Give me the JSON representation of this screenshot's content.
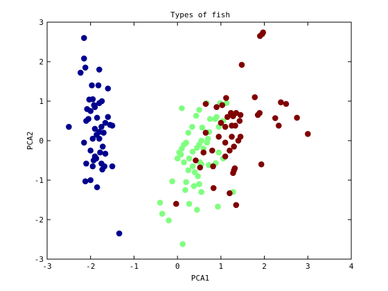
{
  "chart_data": {
    "type": "scatter",
    "title": "Types of fish",
    "xlabel": "PCA1",
    "ylabel": "PCA2",
    "xlim": [
      -3,
      4
    ],
    "ylim": [
      -3,
      3
    ],
    "xticks": [
      "-3",
      "-2",
      "-1",
      "0",
      "1",
      "2",
      "3",
      "4"
    ],
    "yticks": [
      "-3",
      "-2",
      "-1",
      "0",
      "1",
      "2",
      "3"
    ],
    "grid": false,
    "legend": "none",
    "series": [
      {
        "color": "#00008f",
        "points": [
          [
            -2.5,
            0.35
          ],
          [
            -2.15,
            2.6
          ],
          [
            -2.15,
            2.08
          ],
          [
            -2.23,
            1.72
          ],
          [
            -2.12,
            1.85
          ],
          [
            -1.8,
            1.8
          ],
          [
            -1.97,
            1.4
          ],
          [
            -1.82,
            1.4
          ],
          [
            -1.6,
            1.32
          ],
          [
            -2.03,
            1.04
          ],
          [
            -1.95,
            1.05
          ],
          [
            -1.8,
            0.95
          ],
          [
            -1.92,
            0.9
          ],
          [
            -1.9,
            0.85
          ],
          [
            -1.74,
            1.0
          ],
          [
            -2.08,
            0.8
          ],
          [
            -2.0,
            0.75
          ],
          [
            -1.6,
            0.6
          ],
          [
            -1.85,
            0.58
          ],
          [
            -2.05,
            0.55
          ],
          [
            -2.1,
            0.5
          ],
          [
            -1.66,
            0.45
          ],
          [
            -1.55,
            0.4
          ],
          [
            -1.5,
            0.38
          ],
          [
            -1.75,
            0.35
          ],
          [
            -1.9,
            0.3
          ],
          [
            -1.8,
            0.22
          ],
          [
            -1.86,
            0.15
          ],
          [
            -1.7,
            0.2
          ],
          [
            -2.15,
            -0.05
          ],
          [
            -1.95,
            0.05
          ],
          [
            -1.8,
            0.05
          ],
          [
            -1.72,
            -0.15
          ],
          [
            -2.0,
            -0.25
          ],
          [
            -1.9,
            -0.4
          ],
          [
            -1.93,
            -0.5
          ],
          [
            -1.87,
            -0.45
          ],
          [
            -1.78,
            -0.3
          ],
          [
            -1.66,
            -0.33
          ],
          [
            -2.1,
            -0.58
          ],
          [
            -1.95,
            -0.65
          ],
          [
            -1.75,
            -0.58
          ],
          [
            -1.68,
            -0.65
          ],
          [
            -1.5,
            -0.65
          ],
          [
            -1.73,
            -0.73
          ],
          [
            -2.0,
            -1.0
          ],
          [
            -2.12,
            -1.03
          ],
          [
            -1.85,
            -1.18
          ],
          [
            -1.34,
            -2.35
          ]
        ]
      },
      {
        "color": "#80ff80",
        "points": [
          [
            0.1,
            0.82
          ],
          [
            0.5,
            0.78
          ],
          [
            0.67,
            0.95
          ],
          [
            0.98,
            0.95
          ],
          [
            1.13,
            0.95
          ],
          [
            0.43,
            0.63
          ],
          [
            0.75,
            0.55
          ],
          [
            0.87,
            0.55
          ],
          [
            0.9,
            0.6
          ],
          [
            1.05,
            0.5
          ],
          [
            0.95,
            0.35
          ],
          [
            0.34,
            0.35
          ],
          [
            0.25,
            0.2
          ],
          [
            0.57,
            0.33
          ],
          [
            0.73,
            0.22
          ],
          [
            0.7,
            0.05
          ],
          [
            0.55,
            0.0
          ],
          [
            0.68,
            -0.05
          ],
          [
            0.5,
            -0.1
          ],
          [
            0.6,
            -0.2
          ],
          [
            0.35,
            -0.28
          ],
          [
            0.45,
            -0.18
          ],
          [
            0.1,
            -0.2
          ],
          [
            0.04,
            -0.3
          ],
          [
            0.08,
            -0.35
          ],
          [
            0.2,
            -0.05
          ],
          [
            0.15,
            -0.1
          ],
          [
            0.0,
            -0.45
          ],
          [
            0.15,
            -0.55
          ],
          [
            0.27,
            -0.45
          ],
          [
            0.52,
            -0.55
          ],
          [
            0.35,
            -0.65
          ],
          [
            0.55,
            -0.6
          ],
          [
            0.72,
            -0.62
          ],
          [
            0.88,
            -0.57
          ],
          [
            1.05,
            -0.45
          ],
          [
            0.95,
            -0.3
          ],
          [
            0.25,
            -0.75
          ],
          [
            0.4,
            -0.8
          ],
          [
            0.47,
            -0.9
          ],
          [
            -0.12,
            -1.03
          ],
          [
            0.2,
            -1.05
          ],
          [
            0.38,
            -1.15
          ],
          [
            0.5,
            -1.1
          ],
          [
            0.18,
            -1.25
          ],
          [
            0.55,
            -1.3
          ],
          [
            1.28,
            -1.3
          ],
          [
            0.27,
            -1.6
          ],
          [
            0.45,
            -1.75
          ],
          [
            0.93,
            -1.67
          ],
          [
            -0.4,
            -1.57
          ],
          [
            -0.35,
            -1.85
          ],
          [
            -0.2,
            -2.02
          ],
          [
            0.12,
            -2.62
          ]
        ]
      },
      {
        "color": "#800000",
        "points": [
          [
            1.95,
            2.7
          ],
          [
            1.97,
            2.74
          ],
          [
            1.9,
            2.65
          ],
          [
            1.48,
            1.92
          ],
          [
            1.78,
            1.1
          ],
          [
            1.12,
            1.08
          ],
          [
            0.65,
            0.93
          ],
          [
            0.9,
            0.85
          ],
          [
            1.03,
            0.9
          ],
          [
            1.23,
            0.7
          ],
          [
            1.28,
            0.62
          ],
          [
            1.35,
            0.7
          ],
          [
            1.15,
            0.6
          ],
          [
            1.45,
            0.65
          ],
          [
            1.85,
            0.65
          ],
          [
            1.89,
            0.7
          ],
          [
            1.0,
            0.45
          ],
          [
            1.1,
            0.35
          ],
          [
            1.25,
            0.38
          ],
          [
            1.33,
            0.38
          ],
          [
            1.43,
            0.5
          ],
          [
            2.38,
            0.97
          ],
          [
            2.5,
            0.93
          ],
          [
            2.25,
            0.57
          ],
          [
            2.33,
            0.38
          ],
          [
            2.75,
            0.58
          ],
          [
            3.0,
            0.17
          ],
          [
            0.65,
            0.2
          ],
          [
            0.95,
            0.1
          ],
          [
            1.1,
            -0.05
          ],
          [
            1.25,
            0.1
          ],
          [
            1.4,
            0.0
          ],
          [
            1.45,
            0.1
          ],
          [
            0.6,
            -0.3
          ],
          [
            0.8,
            -0.25
          ],
          [
            1.2,
            -0.25
          ],
          [
            1.3,
            -0.15
          ],
          [
            0.42,
            -0.5
          ],
          [
            1.1,
            -0.4
          ],
          [
            0.82,
            -0.65
          ],
          [
            0.52,
            -0.68
          ],
          [
            1.32,
            -0.7
          ],
          [
            1.28,
            -0.82
          ],
          [
            1.3,
            -0.75
          ],
          [
            1.93,
            -0.6
          ],
          [
            0.83,
            -1.2
          ],
          [
            1.2,
            -1.33
          ],
          [
            -0.03,
            -1.6
          ],
          [
            1.35,
            -1.63
          ]
        ]
      }
    ]
  }
}
